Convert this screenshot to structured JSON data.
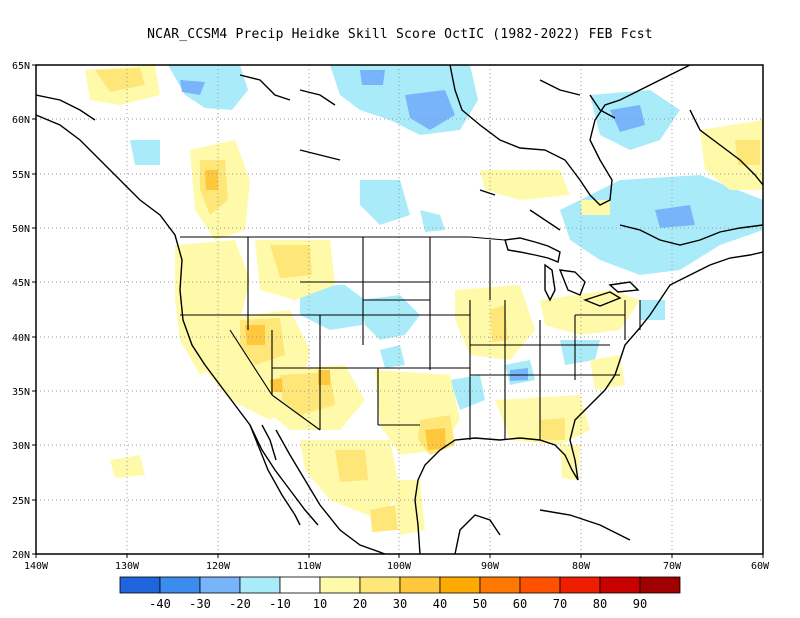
{
  "title": "NCAR_CCSM4 Precip Heidke Skill Score OctIC (1982-2022) FEB Fcst",
  "lat_labels": [
    "65N",
    "60N",
    "55N",
    "50N",
    "45N",
    "40N",
    "35N",
    "30N",
    "25N",
    "20N"
  ],
  "lon_labels": [
    "140W",
    "130W",
    "120W",
    "110W",
    "100W",
    "90W",
    "80W",
    "70W",
    "60W"
  ],
  "colorbar": {
    "colors": [
      "#1e64dc",
      "#3c8cf0",
      "#78b4fa",
      "#aaebfa",
      "#ffffff",
      "#fffaaa",
      "#ffe678",
      "#ffc83c",
      "#ffaa00",
      "#ff7800",
      "#ff5000",
      "#f01e00",
      "#c80000",
      "#a00000"
    ],
    "labels": [
      "-40",
      "-30",
      "-20",
      "-10",
      "10",
      "20",
      "30",
      "40",
      "50",
      "60",
      "70",
      "80",
      "90"
    ]
  },
  "map": {
    "lon_range": [
      -140,
      -60
    ],
    "lat_range": [
      20,
      65
    ],
    "grid": "dotted"
  }
}
